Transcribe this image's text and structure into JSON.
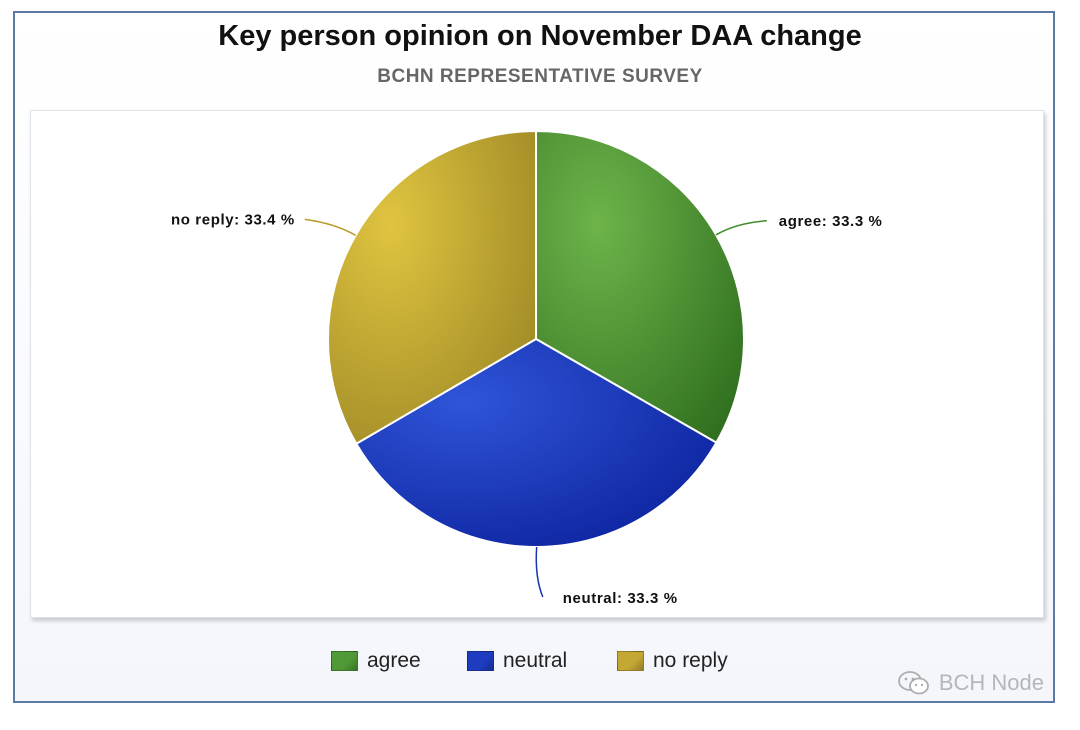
{
  "header": {
    "title": "Key person opinion on November DAA change",
    "subtitle": "BCHN REPRESENTATIVE SURVEY"
  },
  "chart_data": {
    "type": "pie",
    "title": "Key person opinion on November DAA change",
    "subtitle": "BCHN REPRESENTATIVE SURVEY",
    "categories": [
      "agree",
      "neutral",
      "no reply"
    ],
    "values": [
      33.3,
      33.3,
      33.4
    ],
    "value_suffix": "%",
    "data_labels": [
      "agree: 33.3 %",
      "neutral: 33.3 %",
      "no reply: 33.4 %"
    ],
    "colors": [
      "#4f9a36",
      "#1e3cc0",
      "#c4a834"
    ],
    "start_angle": "top (12 o'clock), clockwise",
    "legend": {
      "position": "bottom",
      "entries": [
        "agree",
        "neutral",
        "no reply"
      ]
    }
  },
  "watermark": {
    "text": "BCH Node",
    "icon": "wechat-icon"
  }
}
